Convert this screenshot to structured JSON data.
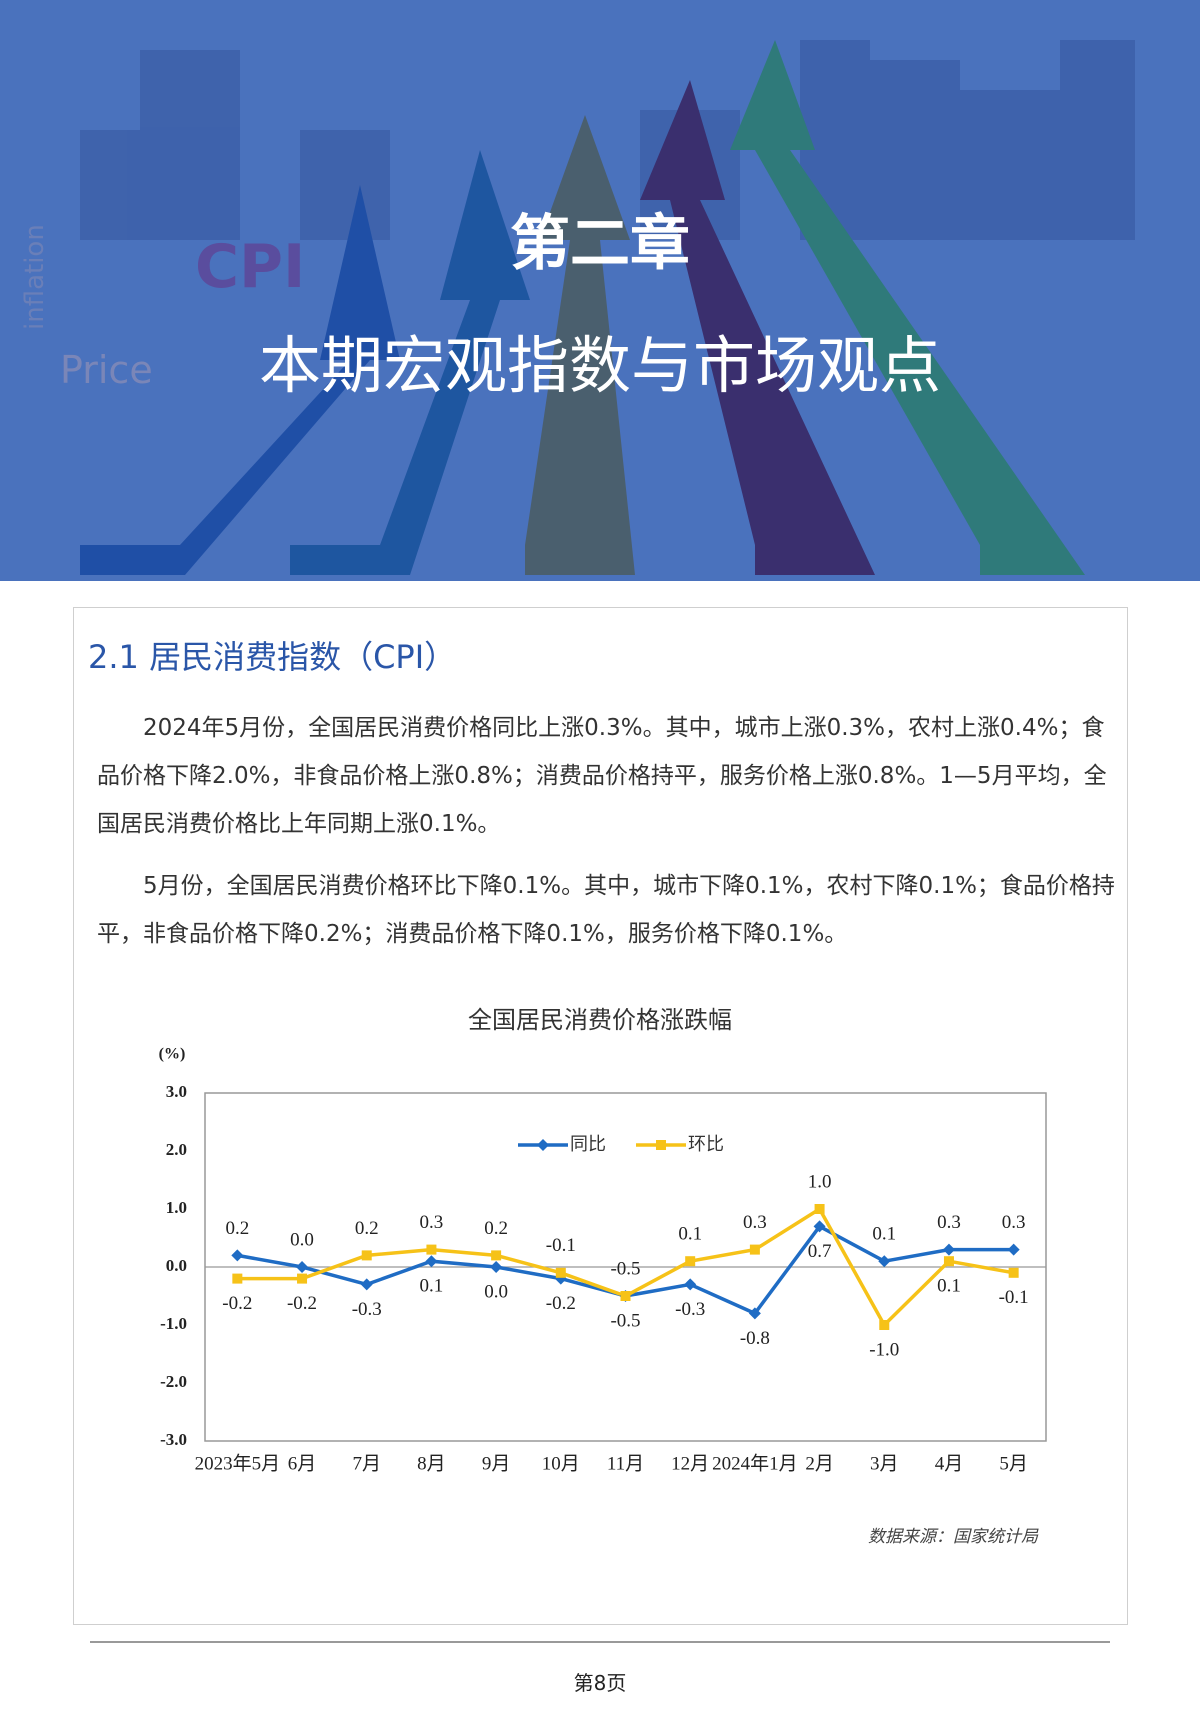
{
  "banner": {
    "chapter": "第二章",
    "title": "本期宏观指数与市场观点",
    "words": [
      "CPI",
      "inflation",
      "Price"
    ]
  },
  "section": {
    "heading": "2.1 居民消费指数（CPI）",
    "paragraphs": [
      "2024年5月份，全国居民消费价格同比上涨0.3%。其中，城市上涨0.3%，农村上涨0.4%；食品价格下降2.0%，非食品价格上涨0.8%；消费品价格持平，服务价格上涨0.8%。1—5月平均，全国居民消费价格比上年同期上涨0.1%。",
      "5月份，全国居民消费价格环比下降0.1%。其中，城市下降0.1%，农村下降0.1%；食品价格持平，非食品价格下降0.2%；消费品价格下降0.1%，服务价格下降0.1%。"
    ]
  },
  "chart_data": {
    "type": "line",
    "title": "全国居民消费价格涨跌幅",
    "y_label": "(%)",
    "categories": [
      "2023年5月",
      "6月",
      "7月",
      "8月",
      "9月",
      "10月",
      "11月",
      "12月",
      "2024年1月",
      "2月",
      "3月",
      "4月",
      "5月"
    ],
    "series": [
      {
        "name": "同比",
        "color": "#1f6cc4",
        "values": [
          0.2,
          0.0,
          -0.3,
          0.1,
          0.0,
          -0.2,
          -0.5,
          -0.3,
          -0.8,
          0.7,
          0.1,
          0.3,
          0.3
        ],
        "value_labels": [
          "0.2",
          "0.0",
          "-0.3",
          "0.1",
          "0.0",
          "-0.2",
          "-0.5",
          "-0.3",
          "-0.8",
          "0.7",
          "0.1",
          "0.3",
          "0.3"
        ]
      },
      {
        "name": "环比",
        "color": "#f6c218",
        "values": [
          -0.2,
          -0.2,
          0.2,
          0.3,
          0.2,
          -0.1,
          -0.5,
          0.1,
          0.3,
          1.0,
          -1.0,
          0.1,
          -0.1
        ],
        "value_labels": [
          "-0.2",
          "-0.2",
          "0.2",
          "0.3",
          "0.2",
          "-0.1",
          "-0.5",
          "0.1",
          "0.3",
          "1.0",
          "-1.0",
          "0.1",
          "-0.1"
        ]
      }
    ],
    "ylim": [
      -3,
      3
    ],
    "yticks": [
      {
        "value": -3,
        "label": "-3.0"
      },
      {
        "value": -2,
        "label": "-2.0"
      },
      {
        "value": -1,
        "label": "-1.0"
      },
      {
        "value": 0,
        "label": "0.0"
      },
      {
        "value": 1,
        "label": "1.0"
      },
      {
        "value": 2,
        "label": "2.0"
      },
      {
        "value": 3,
        "label": "3.0"
      }
    ],
    "legend": "top",
    "source": "数据来源：国家统计局"
  },
  "footer": {
    "page": "第8页"
  }
}
